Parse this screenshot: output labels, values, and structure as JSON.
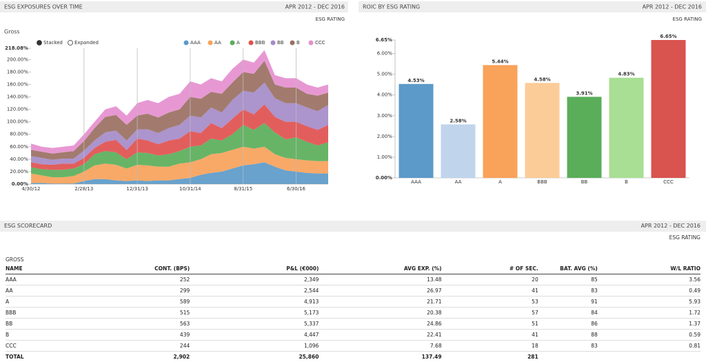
{
  "chart_data": [
    {
      "type": "stacked_area",
      "title": "ESG EXPOSURES OVER TIME",
      "date_range": "APR 2012 - DEC 2016",
      "subtitle": "ESG RATING",
      "label": "Gross",
      "modes": [
        "Stacked",
        "Expanded"
      ],
      "mode": "Stacked",
      "x": [
        "4/30/12",
        "6/30/12",
        "8/31/12",
        "10/31/12",
        "12/31/12",
        "2/28/13",
        "4/30/13",
        "6/30/13",
        "8/31/13",
        "10/31/13",
        "12/31/13",
        "2/28/14",
        "4/30/14",
        "6/30/14",
        "8/31/14",
        "10/31/14",
        "12/31/14",
        "2/28/15",
        "4/30/15",
        "6/30/15",
        "8/31/15",
        "10/31/15",
        "12/31/15",
        "2/29/16",
        "4/30/16",
        "6/30/16",
        "8/31/16",
        "10/31/16",
        "12/31/16"
      ],
      "xticks": [
        "4/30/12",
        "2/28/13",
        "12/31/13",
        "10/31/14",
        "8/31/15",
        "6/30/16"
      ],
      "xgrid": true,
      "ylim": [
        0,
        218.08
      ],
      "yticks": [
        {
          "value": 0,
          "label": "0.00%"
        },
        {
          "value": 20,
          "label": "20.00%"
        },
        {
          "value": 40,
          "label": "40.00%"
        },
        {
          "value": 60,
          "label": "60.00%"
        },
        {
          "value": 80,
          "label": "80.00%"
        },
        {
          "value": 100,
          "label": "100.00%"
        },
        {
          "value": 120,
          "label": "120.00%"
        },
        {
          "value": 140,
          "label": "140.00%"
        },
        {
          "value": 160,
          "label": "160.00%"
        },
        {
          "value": 180,
          "label": "180.00%"
        },
        {
          "value": 200,
          "label": "200.00%"
        },
        {
          "value": 218.08,
          "label": "218.08%"
        }
      ],
      "series": [
        {
          "name": "AAA",
          "color": "#5b9ac9",
          "values": [
            2,
            2,
            1,
            1,
            1,
            5,
            8,
            8,
            6,
            5,
            6,
            5,
            6,
            6,
            8,
            10,
            15,
            18,
            20,
            25,
            30,
            32,
            35,
            28,
            22,
            20,
            18,
            17,
            17
          ]
        },
        {
          "name": "AA",
          "color": "#f9a25a",
          "values": [
            15,
            12,
            10,
            10,
            12,
            15,
            22,
            25,
            25,
            20,
            25,
            25,
            22,
            22,
            25,
            25,
            25,
            30,
            30,
            30,
            30,
            25,
            25,
            20,
            20,
            20,
            20,
            20,
            20
          ]
        },
        {
          "name": "A",
          "color": "#5aae5a",
          "values": [
            10,
            10,
            12,
            12,
            12,
            12,
            18,
            20,
            20,
            15,
            20,
            20,
            18,
            20,
            20,
            25,
            22,
            25,
            20,
            25,
            35,
            30,
            38,
            35,
            30,
            35,
            30,
            25,
            30
          ]
        },
        {
          "name": "BBB",
          "color": "#e0504f",
          "values": [
            8,
            8,
            8,
            10,
            8,
            10,
            10,
            15,
            20,
            15,
            22,
            20,
            18,
            22,
            20,
            25,
            20,
            25,
            20,
            25,
            25,
            25,
            30,
            25,
            28,
            25,
            25,
            25,
            28
          ]
        },
        {
          "name": "BB",
          "color": "#a58bc9",
          "values": [
            10,
            10,
            8,
            8,
            8,
            12,
            12,
            15,
            15,
            15,
            15,
            18,
            18,
            20,
            22,
            25,
            25,
            25,
            25,
            30,
            30,
            35,
            35,
            30,
            30,
            30,
            30,
            30,
            32
          ]
        },
        {
          "name": "B",
          "color": "#9a7062",
          "values": [
            10,
            10,
            10,
            10,
            12,
            15,
            20,
            25,
            25,
            25,
            22,
            25,
            25,
            25,
            25,
            30,
            30,
            25,
            30,
            28,
            30,
            30,
            35,
            22,
            25,
            25,
            22,
            25,
            20
          ]
        },
        {
          "name": "CCC",
          "color": "#e58fcf",
          "values": [
            10,
            8,
            9,
            9,
            9,
            11,
            10,
            12,
            14,
            15,
            20,
            22,
            23,
            25,
            25,
            25,
            23,
            22,
            20,
            22,
            20,
            18,
            17,
            15,
            15,
            15,
            15,
            13,
            13
          ]
        }
      ]
    },
    {
      "type": "bar",
      "title": "ROIC BY ESG RATING",
      "date_range": "APR 2012 - DEC 2016",
      "subtitle": "ESG RATING",
      "categories": [
        "AAA",
        "AA",
        "A",
        "BBB",
        "BB",
        "B",
        "CCC"
      ],
      "values": [
        4.53,
        2.58,
        5.44,
        4.58,
        3.91,
        4.83,
        6.65
      ],
      "value_labels": [
        "4.53%",
        "2.58%",
        "5.44%",
        "4.58%",
        "3.91%",
        "4.83%",
        "6.65%"
      ],
      "colors": [
        "#5b9ac9",
        "#c0d4ec",
        "#f9a25a",
        "#fccc98",
        "#5aae5a",
        "#a8df94",
        "#d9534f"
      ],
      "ylim": [
        0,
        6.65
      ],
      "yticks": [
        {
          "value": 0,
          "label": "0.00%"
        },
        {
          "value": 1,
          "label": "1.00%"
        },
        {
          "value": 2,
          "label": "2.00%"
        },
        {
          "value": 3,
          "label": "3.00%"
        },
        {
          "value": 4,
          "label": "4.00%"
        },
        {
          "value": 5,
          "label": "5.00%"
        },
        {
          "value": 6,
          "label": "6.00%"
        },
        {
          "value": 6.65,
          "label": "6.65%"
        }
      ]
    }
  ],
  "scorecard": {
    "title": "ESG SCORECARD",
    "date_range": "APR 2012 - DEC 2016",
    "subtitle": "ESG RATING",
    "label": "GROSS",
    "columns": [
      "NAME",
      "CONT. (BPS)",
      "P&L (€000)",
      "AVG EXP. (%)",
      "# OF SEC.",
      "BAT. AVG (%)",
      "W/L RATIO"
    ],
    "rows": [
      [
        "AAA",
        "252",
        "2,349",
        "13.48",
        "20",
        "85",
        "3.56"
      ],
      [
        "AA",
        "299",
        "2,544",
        "26.97",
        "41",
        "83",
        "0.49"
      ],
      [
        "A",
        "589",
        "4,913",
        "21.71",
        "53",
        "91",
        "5.93"
      ],
      [
        "BBB",
        "515",
        "5,173",
        "20.38",
        "57",
        "84",
        "1.72"
      ],
      [
        "BB",
        "563",
        "5,337",
        "24.86",
        "51",
        "86",
        "1.37"
      ],
      [
        "B",
        "439",
        "4,447",
        "22.41",
        "41",
        "88",
        "0.59"
      ],
      [
        "CCC",
        "244",
        "1,096",
        "7.68",
        "18",
        "83",
        "0.81"
      ]
    ],
    "total": [
      "TOTAL",
      "2,902",
      "25,860",
      "137.49",
      "281"
    ]
  }
}
